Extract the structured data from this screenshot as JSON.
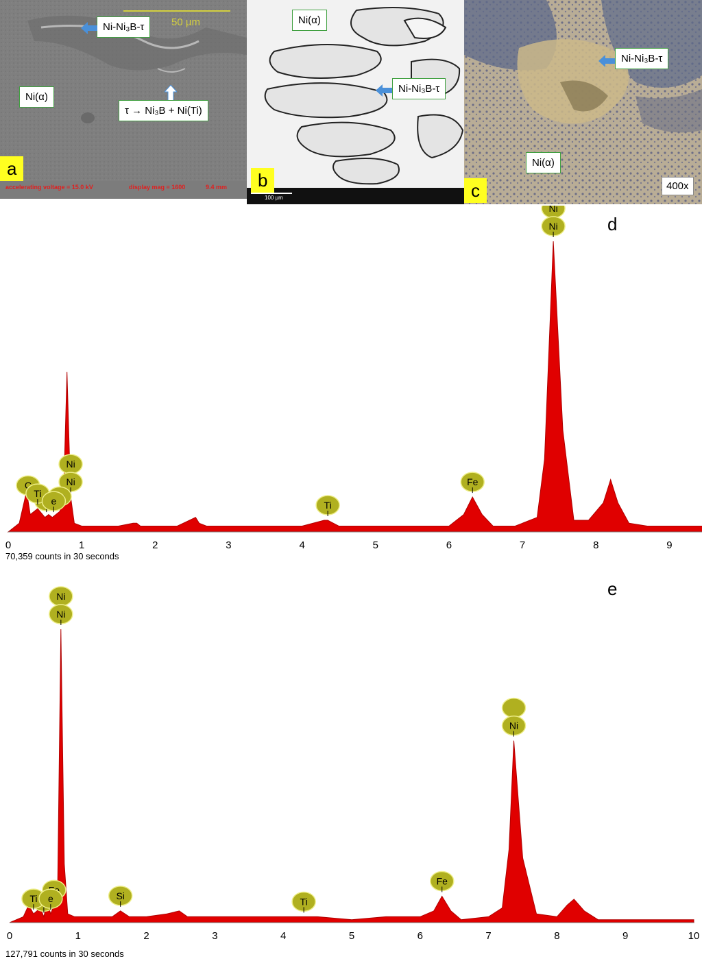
{
  "panels": {
    "a": {
      "letter": "a",
      "scale_bar": "50 µm",
      "callout_phase": "Ni-Ni₃B-τ",
      "callout_matrix": "Ni(α)",
      "callout_reaction": "τ → Ni₃B + Ni(Ti)",
      "footer_voltage": "accelerating voltage = 15.0 kV",
      "footer_mag": "display mag = 1600",
      "footer_wd": "9.4 mm",
      "colors": {
        "background": "#808080",
        "scale": "#d4d040"
      }
    },
    "b": {
      "letter": "b",
      "callout_matrix": "Ni(α)",
      "callout_phase": "Ni-Ni₃B-τ",
      "scale_bar": "100 µm"
    },
    "c": {
      "letter": "c",
      "callout_phase": "Ni-Ni₃B-τ",
      "callout_matrix": "Ni(α)",
      "magnification": "400x"
    }
  },
  "chart_data": [
    {
      "type": "area",
      "panel": "d",
      "title": "",
      "xlabel": "",
      "ylabel": "",
      "xlim": [
        0,
        9.5
      ],
      "ylim": [
        0,
        1
      ],
      "x_ticks": [
        "0",
        "1",
        "2",
        "3",
        "4",
        "5",
        "6",
        "7",
        "8",
        "9"
      ],
      "caption": "70,359 counts in 30 seconds",
      "series": [
        {
          "x": [
            0.0,
            0.15,
            0.25,
            0.3,
            0.4,
            0.5,
            0.55,
            0.6,
            0.7,
            0.75,
            0.8,
            0.85,
            0.9,
            1.0,
            1.2,
            1.5,
            1.7,
            1.75,
            1.8,
            2.0,
            2.3,
            2.55,
            2.6,
            2.7,
            3.0,
            3.5,
            4.0,
            4.3,
            4.35,
            4.5,
            5.0,
            5.5,
            6.0,
            6.2,
            6.32,
            6.45,
            6.6,
            6.9,
            7.0,
            7.2,
            7.3,
            7.42,
            7.55,
            7.7,
            7.9,
            8.1,
            8.2,
            8.3,
            8.45,
            8.7,
            9.0,
            9.5
          ],
          "y": [
            0.0,
            0.03,
            0.14,
            0.06,
            0.08,
            0.05,
            0.06,
            0.05,
            0.07,
            0.1,
            0.55,
            0.12,
            0.03,
            0.02,
            0.02,
            0.02,
            0.03,
            0.03,
            0.02,
            0.02,
            0.02,
            0.05,
            0.03,
            0.02,
            0.02,
            0.02,
            0.02,
            0.04,
            0.04,
            0.02,
            0.02,
            0.02,
            0.02,
            0.06,
            0.12,
            0.06,
            0.02,
            0.02,
            0.03,
            0.05,
            0.25,
            1.0,
            0.35,
            0.04,
            0.04,
            0.1,
            0.18,
            0.1,
            0.03,
            0.02,
            0.02,
            0.02
          ]
        }
      ],
      "peak_labels": [
        {
          "label": "Ni",
          "x": 7.42,
          "stacked": "Ni"
        },
        {
          "label": "Ni",
          "x": 0.85,
          "stacked": "Ni"
        },
        {
          "label": "C",
          "x": 0.27
        },
        {
          "label": "O",
          "x": 0.52
        },
        {
          "label": "Fe",
          "x": 0.7
        },
        {
          "label": "Ti",
          "x": 0.4
        },
        {
          "label": "e",
          "x": 0.62
        },
        {
          "label": "Ti",
          "x": 4.35
        },
        {
          "label": "Fe",
          "x": 6.32
        }
      ]
    },
    {
      "type": "area",
      "panel": "e",
      "title": "",
      "xlabel": "",
      "ylabel": "",
      "xlim": [
        0,
        10
      ],
      "ylim": [
        0,
        1
      ],
      "x_ticks": [
        "0",
        "1",
        "2",
        "3",
        "4",
        "5",
        "6",
        "7",
        "8",
        "9",
        "10"
      ],
      "caption": "127,791 counts in 30 seconds",
      "series": [
        {
          "x": [
            0.0,
            0.2,
            0.28,
            0.35,
            0.45,
            0.5,
            0.55,
            0.6,
            0.65,
            0.7,
            0.75,
            0.8,
            0.85,
            0.95,
            1.2,
            1.5,
            1.62,
            1.75,
            2.0,
            2.3,
            2.48,
            2.6,
            3.0,
            3.5,
            4.0,
            4.3,
            4.5,
            5.0,
            5.5,
            6.0,
            6.2,
            6.32,
            6.45,
            6.6,
            7.0,
            7.2,
            7.3,
            7.37,
            7.5,
            7.7,
            8.0,
            8.15,
            8.25,
            8.4,
            8.6,
            9.0,
            9.5,
            10.0
          ],
          "y": [
            0.0,
            0.02,
            0.06,
            0.03,
            0.05,
            0.02,
            0.07,
            0.03,
            0.06,
            0.08,
            1.0,
            0.2,
            0.03,
            0.02,
            0.02,
            0.02,
            0.04,
            0.02,
            0.02,
            0.03,
            0.04,
            0.02,
            0.02,
            0.02,
            0.02,
            0.02,
            0.02,
            0.01,
            0.02,
            0.02,
            0.04,
            0.09,
            0.04,
            0.01,
            0.02,
            0.05,
            0.25,
            0.62,
            0.22,
            0.03,
            0.02,
            0.06,
            0.08,
            0.04,
            0.01,
            0.01,
            0.01,
            0.01
          ]
        }
      ],
      "peak_labels": [
        {
          "label": "Ni",
          "x": 0.75,
          "stacked": "Ni"
        },
        {
          "label": "Ni",
          "x": 7.37,
          "stacked": ""
        },
        {
          "label": "Fe",
          "x": 0.65
        },
        {
          "label": "O",
          "x": 0.5
        },
        {
          "label": "Ti",
          "x": 0.35
        },
        {
          "label": "e",
          "x": 0.6
        },
        {
          "label": "Si",
          "x": 1.62
        },
        {
          "label": "Ti",
          "x": 4.3
        },
        {
          "label": "Fe",
          "x": 6.32
        }
      ],
      "colors": {
        "fill": "#e00000",
        "label_fill": "#b0b020"
      }
    }
  ],
  "chart_letters": {
    "d": "d",
    "e": "e"
  }
}
